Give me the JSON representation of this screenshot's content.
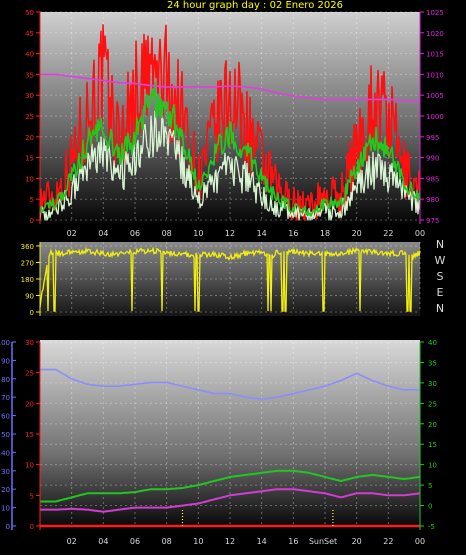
{
  "title": "24 hour graph day : 02 Enero 2026",
  "colors": {
    "wind_gust": "#ff1010",
    "wind_avg": "#22c81e",
    "wind_min": "#d8f5d2",
    "pressure": "#e23ce2",
    "direction": "#f2ee10",
    "humidity": "#8c8cff",
    "temperature": "#1fc81f",
    "dewpoint": "#d23cd2",
    "rain": "#ff1a1a",
    "axis_red": "#ff2020",
    "axis_mag": "#e020e0",
    "axis_green": "#22cc22",
    "axis_blue": "#6f6fff",
    "axis_white": "#d9d9d9"
  },
  "hour_labels": [
    "02",
    "04",
    "06",
    "08",
    "10",
    "12",
    "14",
    "16",
    "18",
    "20",
    "22",
    "00"
  ],
  "sunset_label": "SunSet",
  "compass_labels": [
    "N",
    "W",
    "S",
    "E",
    "N"
  ],
  "chart_data": [
    {
      "type": "line",
      "name": "wind-speed-pressure",
      "left_axis_ticks": [
        0,
        5,
        10,
        15,
        20,
        25,
        30,
        35,
        40,
        45,
        50
      ],
      "right_axis_ticks": [
        975,
        980,
        985,
        990,
        995,
        1000,
        1005,
        1010,
        1015,
        1020,
        1025
      ],
      "ylim_left": [
        0,
        50
      ],
      "ylim_right": [
        975,
        1025
      ],
      "x": [
        0,
        1,
        2,
        3,
        4,
        5,
        6,
        7,
        8,
        9,
        10,
        11,
        12,
        13,
        14,
        15,
        16,
        17,
        18,
        19,
        20,
        21,
        22,
        23,
        24
      ],
      "series": [
        {
          "key": "gust",
          "axis": "left",
          "values": [
            5,
            6,
            14,
            26,
            34,
            19,
            30,
            35,
            33,
            25,
            10,
            21,
            30,
            23,
            14,
            7,
            4,
            3,
            6,
            6,
            17,
            28,
            25,
            12,
            7
          ]
        },
        {
          "key": "avg",
          "axis": "left",
          "values": [
            3,
            4,
            10,
            19,
            23,
            15,
            20,
            29,
            27,
            20,
            8,
            16,
            21,
            17,
            10,
            5,
            3,
            2,
            4,
            4,
            13,
            20,
            17,
            9,
            5
          ]
        },
        {
          "key": "min",
          "axis": "left",
          "values": [
            1,
            2,
            7,
            13,
            16,
            10,
            15,
            22,
            19,
            13,
            5,
            10,
            13,
            10,
            6,
            3,
            2,
            1,
            2,
            2,
            8,
            12,
            11,
            6,
            3
          ]
        },
        {
          "key": "pressure",
          "axis": "right",
          "values": [
            1010,
            1010,
            1009.5,
            1009,
            1008.5,
            1008,
            1007.8,
            1007.3,
            1007,
            1007,
            1007,
            1007,
            1007.2,
            1007,
            1006.5,
            1005.5,
            1004.8,
            1004.3,
            1004,
            1004,
            1004,
            1004,
            1004,
            1003.7,
            1003.6
          ]
        }
      ]
    },
    {
      "type": "scatter",
      "name": "wind-direction",
      "left_axis_ticks": [
        0,
        90,
        180,
        270,
        360
      ],
      "ylim": [
        0,
        360
      ],
      "x": [
        0,
        0.6,
        1,
        2,
        3,
        4,
        5,
        6,
        7,
        7.5,
        8,
        9,
        10,
        11,
        12,
        13,
        14,
        14.5,
        15,
        16,
        17,
        18,
        19,
        20,
        21,
        22,
        23,
        23.5,
        24
      ],
      "values": [
        40,
        330,
        320,
        325,
        330,
        320,
        315,
        330,
        335,
        330,
        320,
        315,
        310,
        315,
        300,
        320,
        320,
        300,
        325,
        330,
        320,
        320,
        315,
        335,
        330,
        320,
        320,
        300,
        325
      ]
    },
    {
      "type": "line",
      "name": "temperature-humidity-rain",
      "humidity_axis_ticks": [
        0,
        10,
        20,
        30,
        40,
        50,
        60,
        70,
        80,
        90,
        100
      ],
      "rain_axis_ticks": [
        0,
        5,
        10,
        15,
        20,
        25,
        30
      ],
      "temp_axis_ticks": [
        -5,
        0,
        5,
        10,
        15,
        20,
        25,
        30,
        35,
        40
      ],
      "ylim_humidity": [
        0,
        100
      ],
      "ylim_temp": [
        -5,
        40
      ],
      "x": [
        0,
        1,
        2,
        3,
        4,
        5,
        6,
        7,
        8,
        9,
        10,
        11,
        12,
        13,
        14,
        15,
        16,
        17,
        18,
        19,
        20,
        21,
        22,
        23,
        24
      ],
      "series": [
        {
          "key": "humidity",
          "axis": "humidity",
          "values": [
            85,
            85,
            80,
            77,
            76,
            76,
            77,
            78,
            78,
            76,
            74,
            72,
            72,
            70,
            69,
            70,
            72,
            74,
            76,
            79,
            83,
            79,
            76,
            74,
            74
          ]
        },
        {
          "key": "temperature",
          "axis": "temp",
          "values": [
            1,
            1,
            2,
            3,
            3,
            3,
            3.3,
            4,
            4,
            4.3,
            5,
            6,
            7,
            7.5,
            8,
            8.5,
            8.5,
            8,
            7,
            6,
            7,
            7.5,
            7,
            6.5,
            7
          ]
        },
        {
          "key": "dewpoint",
          "axis": "temp",
          "values": [
            -1,
            -1,
            -0.8,
            -1,
            -1.5,
            -1,
            -0.5,
            -0.5,
            -0.5,
            0,
            0.5,
            1.5,
            2.5,
            3,
            3.5,
            4,
            4,
            3.5,
            3,
            2,
            3,
            3,
            2.5,
            2.5,
            3
          ]
        },
        {
          "key": "rain",
          "axis": "humidity",
          "values": [
            0,
            0,
            0,
            0,
            0,
            0,
            0,
            0,
            0,
            0,
            0,
            0,
            0,
            0,
            0,
            0,
            0,
            0,
            0,
            0,
            0,
            0,
            0,
            0,
            0
          ]
        }
      ]
    }
  ]
}
